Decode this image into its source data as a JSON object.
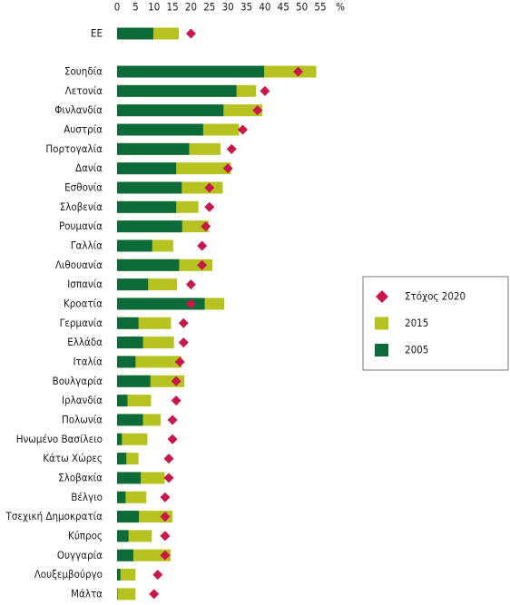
{
  "chart_data": {
    "type": "bar",
    "orientation": "horizontal",
    "xunit": "%",
    "categories": [
      "ΕΕ",
      "Σουηδία",
      "Λετονία",
      "Φινλανδία",
      "Αυστρία",
      "Πορτογαλία",
      "Δανία",
      "Εσθονία",
      "Σλοβενία",
      "Ρουμανία",
      "Γαλλία",
      "Λιθουανία",
      "Ισπανία",
      "Κροατία",
      "Γερμανία",
      "Ελλάδα",
      "Ιταλία",
      "Βουλγαρία",
      "Ιρλανδία",
      "Πολωνία",
      "Ηνωμένο Βασίλειο",
      "Κάτω Χώρες",
      "Σλοβακία",
      "Βέλγιο",
      "Τσεχική Δημοκρατία",
      "Κύπρος",
      "Ουγγαρία",
      "Λουξεμβούργο",
      "Μάλτα"
    ],
    "series": [
      {
        "name": "Στόχος 2020",
        "color": "#c8174a",
        "marker": "diamond",
        "values": [
          20,
          49,
          40,
          38,
          34,
          31,
          30,
          25,
          25,
          24,
          23,
          23,
          20,
          20,
          18,
          18,
          17,
          16,
          16,
          15,
          15,
          14,
          14,
          13,
          13,
          13,
          13,
          11,
          10
        ]
      },
      {
        "name": "2015",
        "color": "#b5c21f",
        "marker": "bar",
        "values": [
          16.7,
          53.9,
          37.6,
          39.3,
          33,
          28,
          30.8,
          28.6,
          22,
          24.8,
          15.2,
          25.8,
          16.2,
          29,
          14.6,
          15.4,
          17.5,
          18.2,
          9.2,
          11.8,
          8.2,
          5.8,
          12.9,
          7.9,
          15,
          9.4,
          14.5,
          5,
          5
        ]
      },
      {
        "name": "2005",
        "color": "#0d6b3a",
        "marker": "bar",
        "values": [
          9.8,
          39.8,
          32.3,
          28.8,
          23.3,
          19.5,
          16,
          17.5,
          16,
          17.6,
          9.5,
          16.8,
          8.4,
          23.7,
          5.8,
          7,
          5,
          9,
          2.8,
          7,
          1.3,
          2.5,
          6.4,
          2.3,
          5.9,
          3.1,
          4.4,
          0.9,
          0.1
        ]
      }
    ],
    "xlim": [
      0,
      55
    ],
    "xticks": [
      0,
      5,
      10,
      15,
      20,
      25,
      30,
      35,
      40,
      45,
      50,
      55
    ],
    "legend": "right"
  }
}
